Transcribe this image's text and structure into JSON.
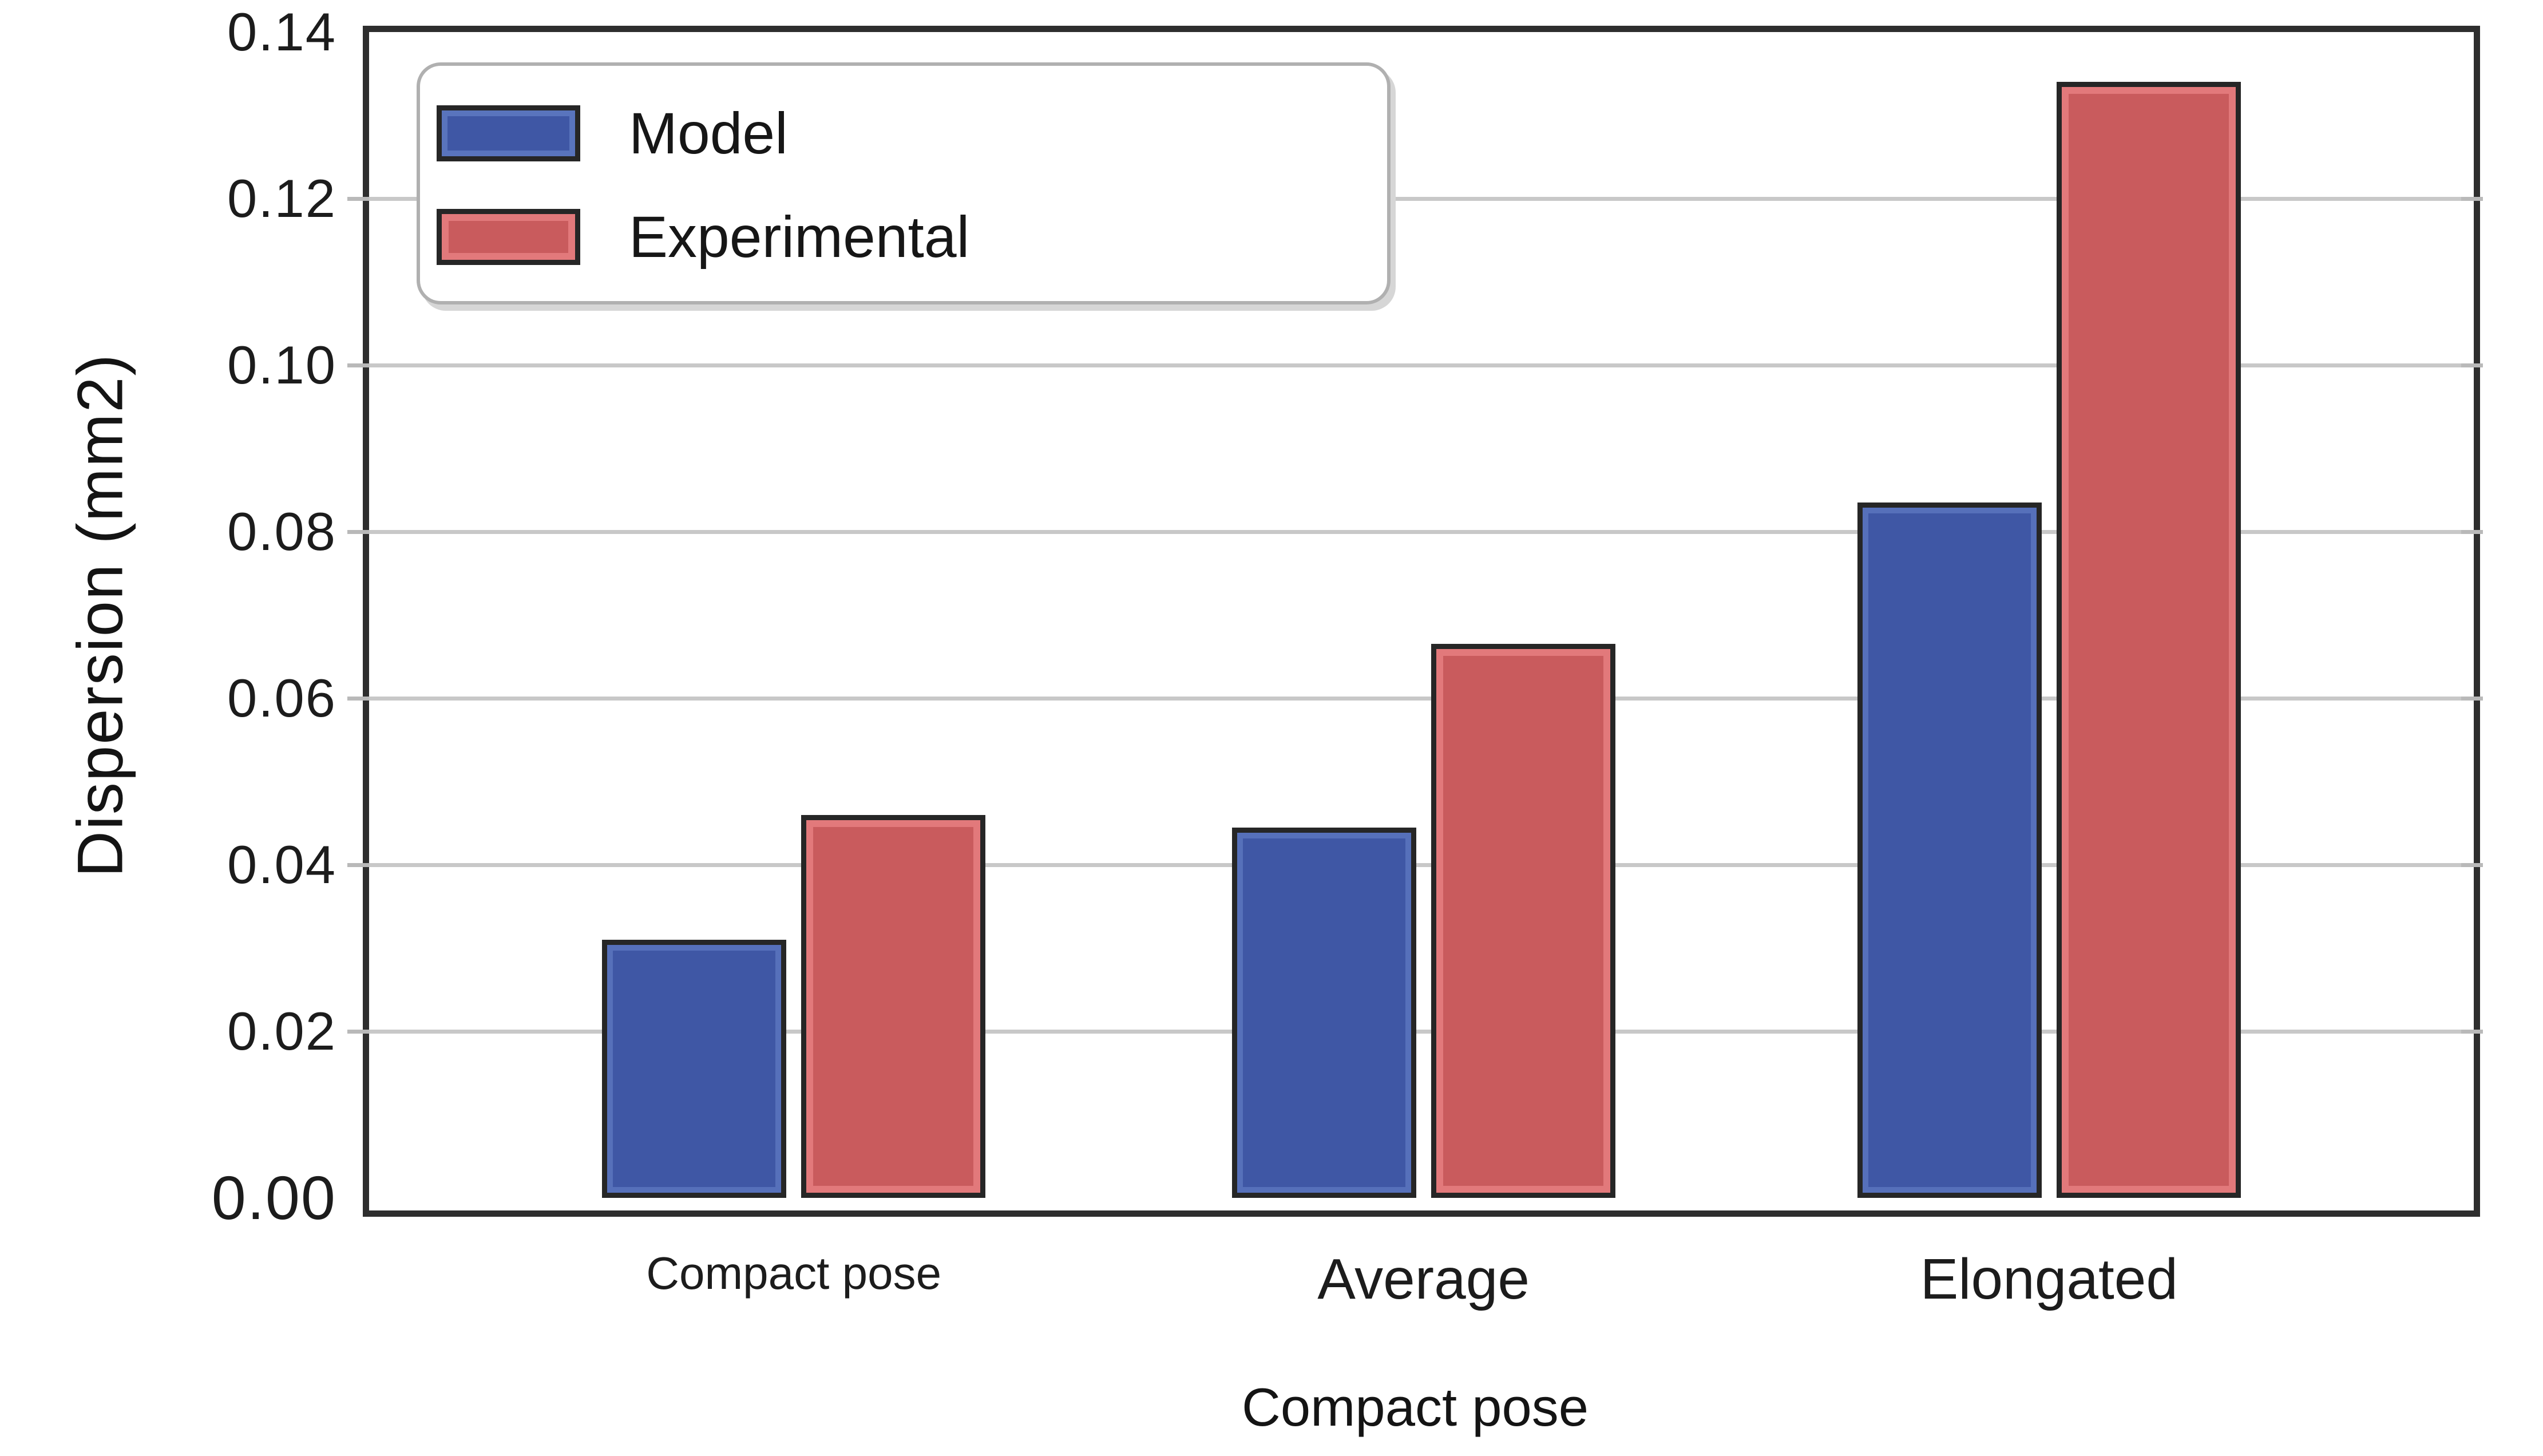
{
  "chart_data": {
    "type": "bar",
    "title": "",
    "xlabel": "Compact pose",
    "ylabel": "Dispersion (mm2)",
    "categories": [
      "Compact pose",
      "Average",
      "Elongated"
    ],
    "series": [
      {
        "name": "Model",
        "color": "#3f57a5",
        "values": [
          0.031,
          0.0445,
          0.0835
        ]
      },
      {
        "name": "Experimental",
        "color": "#c95b5d",
        "values": [
          0.046,
          0.0665,
          0.134
        ]
      }
    ],
    "ylim": [
      0,
      0.14
    ],
    "ytick_step": 0.02,
    "ytick_labels": [
      "0.00",
      "0.02",
      "0.04",
      "0.06",
      "0.08",
      "0.10",
      "0.12",
      "0.14"
    ],
    "grid": true,
    "gridline_color": "#c8c8c8",
    "bar_edge_color": "#262626",
    "legend_position": "upper left"
  }
}
